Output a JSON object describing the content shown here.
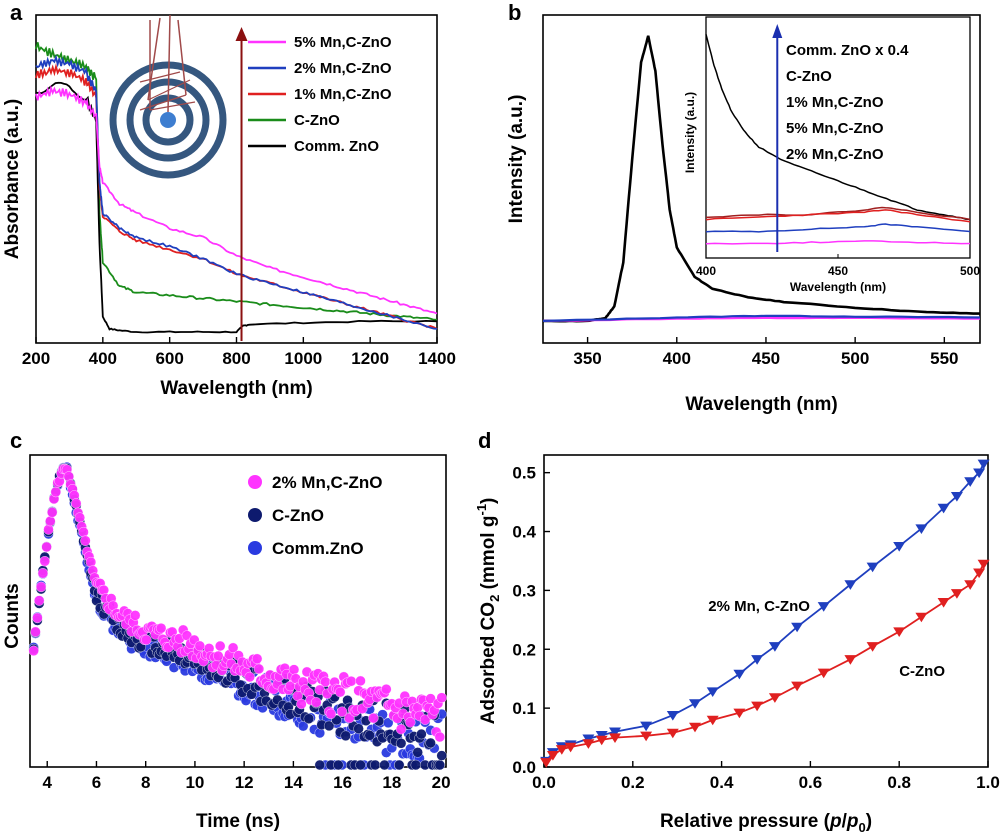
{
  "figure": {
    "panel_letters": [
      "a",
      "b",
      "c",
      "d"
    ]
  },
  "chart_data": [
    {
      "panel": "a",
      "type": "line",
      "xlabel": "Wavelength (nm)",
      "ylabel": "Absorbance (a.u.)",
      "xlim": [
        200,
        1400
      ],
      "xticks": [
        200,
        400,
        600,
        800,
        1000,
        1200,
        1400
      ],
      "ylim": [
        0,
        1
      ],
      "yticks_shown": false,
      "legend_position": "top-right",
      "arrow_x": 815,
      "inset_graphic": "concentric-rings-light-scattering",
      "series": [
        {
          "name": "5% Mn,C-ZnO",
          "color": "#ff33ff",
          "x": [
            200,
            250,
            300,
            350,
            380,
            390,
            400,
            450,
            500,
            600,
            700,
            800,
            900,
            1000,
            1100,
            1200,
            1300,
            1400
          ],
          "y": [
            0.78,
            0.8,
            0.79,
            0.76,
            0.72,
            0.55,
            0.5,
            0.43,
            0.4,
            0.35,
            0.32,
            0.26,
            0.22,
            0.19,
            0.16,
            0.13,
            0.1,
            0.07
          ]
        },
        {
          "name": "2% Mn,C-ZnO",
          "color": "#1f3fbf",
          "x": [
            200,
            250,
            300,
            350,
            380,
            390,
            400,
            450,
            500,
            600,
            700,
            800,
            900,
            1000,
            1100,
            1200,
            1300,
            1400
          ],
          "y": [
            0.88,
            0.9,
            0.89,
            0.86,
            0.8,
            0.5,
            0.4,
            0.35,
            0.32,
            0.29,
            0.25,
            0.2,
            0.17,
            0.14,
            0.11,
            0.08,
            0.05,
            0.02
          ]
        },
        {
          "name": "1% Mn,C-ZnO",
          "color": "#e02020",
          "x": [
            200,
            250,
            300,
            350,
            380,
            390,
            400,
            450,
            500,
            600,
            700,
            800,
            900,
            1000,
            1100,
            1200,
            1300,
            1400
          ],
          "y": [
            0.85,
            0.87,
            0.86,
            0.83,
            0.78,
            0.48,
            0.39,
            0.34,
            0.31,
            0.28,
            0.25,
            0.2,
            0.17,
            0.14,
            0.11,
            0.08,
            0.05,
            0.02
          ]
        },
        {
          "name": "C-ZnO",
          "color": "#1a8c1a",
          "x": [
            200,
            250,
            300,
            350,
            380,
            390,
            400,
            450,
            500,
            600,
            700,
            800,
            900,
            1000,
            1100,
            1200,
            1300,
            1400
          ],
          "y": [
            0.95,
            0.92,
            0.9,
            0.88,
            0.84,
            0.4,
            0.24,
            0.16,
            0.14,
            0.13,
            0.12,
            0.11,
            0.1,
            0.09,
            0.08,
            0.07,
            0.06,
            0.05
          ]
        },
        {
          "name": "Comm. ZnO",
          "color": "#000000",
          "x": [
            200,
            250,
            300,
            350,
            380,
            390,
            400,
            420,
            450,
            500,
            600,
            700,
            800,
            820,
            840,
            1000,
            1200,
            1400
          ],
          "y": [
            0.8,
            0.82,
            0.81,
            0.78,
            0.7,
            0.3,
            0.06,
            0.02,
            0.015,
            0.01,
            0.01,
            0.01,
            0.01,
            0.03,
            0.035,
            0.04,
            0.045,
            0.045
          ]
        }
      ]
    },
    {
      "panel": "b",
      "type": "line",
      "xlabel": "Wavelength (nm)",
      "ylabel": "Intensity (a.u.)",
      "xlim": [
        325,
        570
      ],
      "xticks": [
        350,
        400,
        450,
        500,
        550
      ],
      "ylim": [
        0,
        1
      ],
      "yticks_shown": false,
      "series": [
        {
          "name": "Comm. ZnO",
          "color": "#000000",
          "x": [
            325,
            350,
            360,
            365,
            370,
            375,
            380,
            384,
            388,
            392,
            396,
            400,
            410,
            420,
            440,
            460,
            500,
            540,
            570
          ],
          "y": [
            0.0,
            0.0,
            0.01,
            0.05,
            0.2,
            0.55,
            0.88,
            0.97,
            0.85,
            0.6,
            0.38,
            0.25,
            0.15,
            0.11,
            0.08,
            0.065,
            0.045,
            0.03,
            0.025
          ]
        },
        {
          "name": "C-ZnO",
          "color": "#ff33ff",
          "x": [
            325,
            400,
            450,
            500,
            570
          ],
          "y": [
            0.0,
            0.008,
            0.01,
            0.01,
            0.008
          ]
        },
        {
          "name": "2% Mn,C-ZnO",
          "color": "#1f3fbf",
          "x": [
            325,
            400,
            450,
            500,
            570
          ],
          "y": [
            0.0,
            0.012,
            0.018,
            0.015,
            0.012
          ]
        }
      ],
      "inset": {
        "xlabel": "Wavelength (nm)",
        "ylabel": "Intensity (a.u.)",
        "xlim": [
          400,
          500
        ],
        "xticks": [
          400,
          450,
          500
        ],
        "ylim": [
          0,
          1
        ],
        "legend_labels": [
          "Comm. ZnO x 0.4",
          "C-ZnO",
          "1% Mn,C-ZnO",
          "5% Mn,C-ZnO",
          "2% Mn,C-ZnO"
        ],
        "arrow_x": 427,
        "series": [
          {
            "name": "Comm. ZnO x 0.4",
            "color": "#000000",
            "x": [
              400,
              403,
              406,
              410,
              415,
              420,
              430,
              440,
              450,
              460,
              470,
              480,
              490,
              500
            ],
            "y": [
              0.93,
              0.8,
              0.7,
              0.6,
              0.52,
              0.46,
              0.4,
              0.36,
              0.32,
              0.28,
              0.24,
              0.2,
              0.18,
              0.16
            ]
          },
          {
            "name": "C-ZnO",
            "color": "#a02020",
            "x": [
              400,
              420,
              440,
              460,
              468,
              480,
              500
            ],
            "y": [
              0.17,
              0.18,
              0.18,
              0.2,
              0.21,
              0.19,
              0.16
            ]
          },
          {
            "name": "1% Mn,C-ZnO",
            "color": "#e02020",
            "x": [
              400,
              420,
              440,
              460,
              468,
              480,
              500
            ],
            "y": [
              0.16,
              0.17,
              0.18,
              0.19,
              0.2,
              0.18,
              0.15
            ]
          },
          {
            "name": "5% Mn,C-ZnO",
            "color": "#1f3fbf",
            "x": [
              400,
              420,
              440,
              460,
              468,
              480,
              500
            ],
            "y": [
              0.11,
              0.11,
              0.12,
              0.13,
              0.14,
              0.13,
              0.11
            ]
          },
          {
            "name": "2% Mn,C-ZnO",
            "color": "#ff33ff",
            "x": [
              400,
              420,
              440,
              460,
              480,
              500
            ],
            "y": [
              0.06,
              0.06,
              0.065,
              0.07,
              0.065,
              0.06
            ]
          }
        ]
      }
    },
    {
      "panel": "c",
      "type": "scatter",
      "xlabel": "Time (ns)",
      "ylabel": "Counts",
      "xlim": [
        3.3,
        20.2
      ],
      "xticks": [
        4,
        6,
        8,
        10,
        12,
        14,
        16,
        18,
        20
      ],
      "ylim": [
        0,
        1
      ],
      "yticks_shown": false,
      "legend_position": "top-right",
      "series": [
        {
          "name": "2% Mn,C-ZnO",
          "color": "#ff33ff",
          "peak_x": 4.8,
          "rise_start": 3.4,
          "decay_points": [
            [
              6.0,
              0.6
            ],
            [
              7,
              0.5
            ],
            [
              8,
              0.45
            ],
            [
              10,
              0.4
            ],
            [
              12,
              0.33
            ],
            [
              14,
              0.27
            ],
            [
              16,
              0.23
            ],
            [
              18,
              0.19
            ],
            [
              20,
              0.16
            ]
          ]
        },
        {
          "name": "C-ZnO",
          "color": "#0d1a6e",
          "peak_x": 4.8,
          "rise_start": 3.4,
          "decay_points": [
            [
              6.0,
              0.57
            ],
            [
              7,
              0.46
            ],
            [
              8,
              0.42
            ],
            [
              10,
              0.36
            ],
            [
              12,
              0.29
            ],
            [
              14,
              0.22
            ],
            [
              16,
              0.17
            ],
            [
              18,
              0.13
            ],
            [
              20,
              0.11
            ]
          ]
        },
        {
          "name": "Comm.ZnO",
          "color": "#2a3ae0",
          "peak_x": 4.8,
          "rise_start": 3.4,
          "decay_points": [
            [
              6.0,
              0.55
            ],
            [
              7,
              0.44
            ],
            [
              8,
              0.4
            ],
            [
              10,
              0.34
            ],
            [
              12,
              0.27
            ],
            [
              14,
              0.2
            ],
            [
              16,
              0.15
            ],
            [
              18,
              0.11
            ],
            [
              20,
              0.09
            ]
          ]
        }
      ]
    },
    {
      "panel": "d",
      "type": "line",
      "xlabel": "Relative pressure",
      "xlabel_math": {
        "p": "p",
        "p0_base": "p",
        "p0_sub": "0"
      },
      "ylabel": "Adsorbed CO",
      "ylabel_sub": "2",
      "ylabel_units": "(mmol g",
      "ylabel_sup": "-1",
      "xlim": [
        0,
        1
      ],
      "xticks": [
        0.0,
        0.2,
        0.4,
        0.6,
        0.8,
        1.0
      ],
      "ylim": [
        0,
        0.53
      ],
      "yticks": [
        0.0,
        0.1,
        0.2,
        0.3,
        0.4,
        0.5
      ],
      "series": [
        {
          "name": "2% Mn, C-ZnO",
          "color": "#1f3fbf",
          "marker": "triangle-down",
          "x": [
            0.005,
            0.02,
            0.04,
            0.06,
            0.1,
            0.13,
            0.16,
            0.23,
            0.29,
            0.34,
            0.38,
            0.44,
            0.48,
            0.52,
            0.57,
            0.63,
            0.69,
            0.74,
            0.8,
            0.85,
            0.9,
            0.93,
            0.96,
            0.98,
            0.99
          ],
          "y": [
            0.01,
            0.025,
            0.035,
            0.038,
            0.048,
            0.054,
            0.06,
            0.07,
            0.088,
            0.108,
            0.128,
            0.158,
            0.183,
            0.205,
            0.238,
            0.273,
            0.31,
            0.34,
            0.375,
            0.405,
            0.44,
            0.46,
            0.485,
            0.5,
            0.515
          ]
        },
        {
          "name": "C-ZnO",
          "color": "#e02020",
          "marker": "triangle-down",
          "x": [
            0.005,
            0.02,
            0.04,
            0.06,
            0.1,
            0.13,
            0.16,
            0.23,
            0.29,
            0.34,
            0.38,
            0.44,
            0.48,
            0.52,
            0.57,
            0.63,
            0.69,
            0.74,
            0.8,
            0.85,
            0.9,
            0.93,
            0.96,
            0.98,
            0.99
          ],
          "y": [
            0.008,
            0.02,
            0.03,
            0.034,
            0.04,
            0.046,
            0.05,
            0.053,
            0.058,
            0.068,
            0.08,
            0.092,
            0.104,
            0.118,
            0.138,
            0.16,
            0.183,
            0.205,
            0.23,
            0.255,
            0.28,
            0.295,
            0.31,
            0.33,
            0.345
          ]
        }
      ],
      "annotations": [
        {
          "text": "2% Mn, C-ZnO",
          "x": 0.37,
          "y": 0.265
        },
        {
          "text": "C-ZnO",
          "x": 0.8,
          "y": 0.155
        }
      ]
    }
  ]
}
